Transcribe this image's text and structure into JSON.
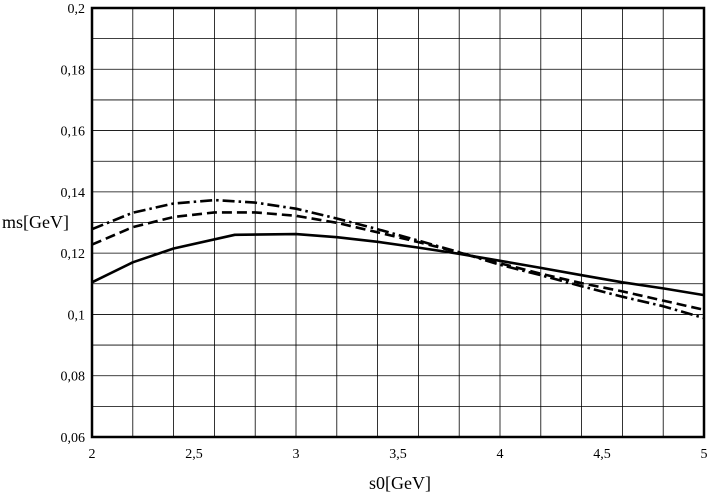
{
  "chart_data": {
    "type": "line",
    "xlabel": "s0[GeV]",
    "ylabel": "ms[GeV]",
    "xlim": [
      2,
      5
    ],
    "ylim": [
      0.06,
      0.2
    ],
    "x_ticks": [
      2,
      2.5,
      3,
      3.5,
      4,
      4.5,
      5
    ],
    "x_tick_labels": [
      "2",
      "2,5",
      "3",
      "3,5",
      "4",
      "4,5",
      "5"
    ],
    "y_ticks": [
      0.06,
      0.08,
      0.1,
      0.12,
      0.14,
      0.16,
      0.18,
      0.2
    ],
    "y_tick_labels": [
      "0,06",
      "0,08",
      "0,1",
      "0,12",
      "0,14",
      "0,16",
      "0,18",
      "0,2"
    ],
    "grid": true,
    "grid_x_step": 0.2,
    "grid_y_step": 0.01,
    "series": [
      {
        "style": "solid",
        "color": "#000000",
        "x": [
          2.0,
          2.2,
          2.4,
          2.7,
          3.0,
          3.2,
          3.4,
          3.6,
          3.8,
          4.0,
          4.2,
          4.4,
          4.6,
          4.8,
          5.0
        ],
        "y": [
          0.1105,
          0.117,
          0.1215,
          0.126,
          0.1262,
          0.1252,
          0.1237,
          0.1218,
          0.1198,
          0.1175,
          0.1152,
          0.1128,
          0.1105,
          0.1085,
          0.1063
        ]
      },
      {
        "style": "dashed",
        "color": "#000000",
        "x": [
          2.0,
          2.2,
          2.4,
          2.6,
          2.8,
          3.0,
          3.2,
          3.4,
          3.6,
          3.8,
          4.0,
          4.2,
          4.4,
          4.6,
          4.8,
          5.0
        ],
        "y": [
          0.1228,
          0.1285,
          0.1318,
          0.1333,
          0.1333,
          0.1322,
          0.1299,
          0.1268,
          0.1236,
          0.1202,
          0.1167,
          0.1133,
          0.1102,
          0.1075,
          0.1045,
          0.1015
        ]
      },
      {
        "style": "dash-dot",
        "color": "#000000",
        "x": [
          2.0,
          2.2,
          2.4,
          2.6,
          2.8,
          3.0,
          3.2,
          3.4,
          3.6,
          3.8,
          4.0,
          4.2,
          4.4,
          4.6,
          4.8,
          5.0
        ],
        "y": [
          0.1278,
          0.1332,
          0.1362,
          0.1373,
          0.1365,
          0.1345,
          0.1313,
          0.1278,
          0.1241,
          0.1203,
          0.1162,
          0.1128,
          0.1092,
          0.1058,
          0.1027,
          0.0988
        ]
      }
    ]
  }
}
